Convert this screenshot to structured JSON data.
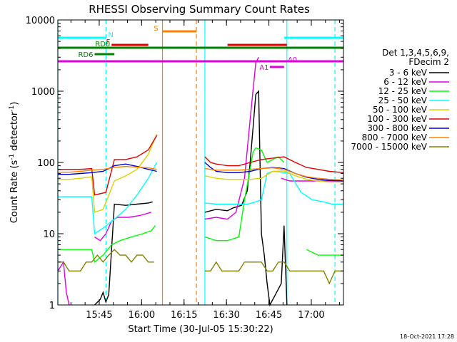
{
  "chart_data": {
    "type": "line",
    "title": "RHESSI Observing Summary Count Rates",
    "xlabel": "Start Time (30-Jul-05 15:30:22)",
    "ylabel_main": "Count Rate (s",
    "ylabel_sup1": "-1",
    "ylabel_mid": " detector",
    "ylabel_sup2": "-1",
    "ylabel_end": ")",
    "y_scale": "log",
    "ylim": [
      1,
      10000
    ],
    "xlim_minutes": [
      0,
      101
    ],
    "x_tick_labels": [
      "15:45",
      "16:00",
      "16:15",
      "16:30",
      "16:45",
      "17:00"
    ],
    "y_tick_labels": [
      "1",
      "10",
      "100",
      "1000",
      "10000"
    ],
    "grid": false,
    "legend_position": "right",
    "detector_info": [
      "Det 1,3,4,5,6,9,",
      "FDecim 2"
    ],
    "footer_date": "18-Oct-2021 17:28",
    "series": [
      {
        "name": "3 - 6 keV",
        "color": "#000000",
        "points": [
          [
            13,
            1
          ],
          [
            15,
            1.2
          ],
          [
            16,
            1.5
          ],
          [
            17,
            1.1
          ],
          [
            18,
            1.4
          ],
          [
            20,
            26
          ],
          [
            24,
            25
          ],
          [
            28,
            26
          ],
          [
            32,
            27
          ],
          [
            33.5,
            28
          ],
          [
            35,
            null
          ],
          [
            52,
            20
          ],
          [
            56,
            22
          ],
          [
            60,
            21
          ],
          [
            62,
            23
          ],
          [
            65,
            25
          ],
          [
            67,
            40
          ],
          [
            68,
            100
          ],
          [
            69,
            300
          ],
          [
            70,
            900
          ],
          [
            71,
            1000
          ],
          [
            72,
            10
          ],
          [
            73,
            5
          ],
          [
            74,
            2
          ],
          [
            75,
            1
          ],
          [
            79,
            2
          ],
          [
            80,
            13
          ],
          [
            81,
            1
          ]
        ]
      },
      {
        "name": "6 - 12 keV",
        "color": "#e000e0",
        "points": [
          [
            0,
            3
          ],
          [
            2,
            4
          ],
          [
            3,
            1.5
          ],
          [
            4,
            1
          ],
          [
            5,
            null
          ],
          [
            13,
            9
          ],
          [
            15,
            8
          ],
          [
            17,
            10
          ],
          [
            19,
            15
          ],
          [
            21,
            17
          ],
          [
            25,
            17
          ],
          [
            29,
            18
          ],
          [
            33,
            20
          ],
          [
            35,
            null
          ],
          [
            52,
            16
          ],
          [
            56,
            17
          ],
          [
            60,
            16
          ],
          [
            63,
            20
          ],
          [
            66,
            60
          ],
          [
            68,
            400
          ],
          [
            70,
            2500
          ],
          [
            71,
            3000
          ],
          [
            73,
            null
          ],
          [
            79,
            60
          ],
          [
            82,
            55
          ],
          [
            90,
            55
          ],
          [
            101,
            55
          ]
        ]
      },
      {
        "name": "12 - 25 keV",
        "color": "#00ff00",
        "points": [
          [
            0,
            6
          ],
          [
            4,
            6
          ],
          [
            8,
            6
          ],
          [
            12,
            6
          ],
          [
            13,
            4
          ],
          [
            16,
            5
          ],
          [
            19,
            7
          ],
          [
            22,
            8
          ],
          [
            26,
            9
          ],
          [
            30,
            10
          ],
          [
            33,
            11
          ],
          [
            34.5,
            13
          ],
          [
            35,
            null
          ],
          [
            52,
            9
          ],
          [
            56,
            8
          ],
          [
            60,
            8
          ],
          [
            64,
            9
          ],
          [
            66,
            30
          ],
          [
            68,
            80
          ],
          [
            69,
            140
          ],
          [
            70,
            160
          ],
          [
            72,
            150
          ],
          [
            74,
            100
          ],
          [
            76,
            110
          ],
          [
            78,
            120
          ],
          [
            80,
            100
          ],
          [
            81,
            null
          ],
          [
            88,
            6
          ],
          [
            92,
            5
          ],
          [
            97,
            5
          ],
          [
            101,
            5
          ]
        ]
      },
      {
        "name": "25 - 50 keV",
        "color": "#00ffff",
        "points": [
          [
            0,
            33
          ],
          [
            4,
            33
          ],
          [
            8,
            33
          ],
          [
            12,
            33
          ],
          [
            13,
            10
          ],
          [
            16,
            12
          ],
          [
            20,
            16
          ],
          [
            24,
            22
          ],
          [
            28,
            35
          ],
          [
            32,
            60
          ],
          [
            35,
            100
          ],
          [
            36,
            null
          ],
          [
            52,
            27
          ],
          [
            56,
            26
          ],
          [
            60,
            26
          ],
          [
            64,
            26
          ],
          [
            67,
            26
          ],
          [
            70,
            28
          ],
          [
            72,
            30
          ],
          [
            74,
            70
          ],
          [
            76,
            75
          ],
          [
            78,
            74
          ],
          [
            82,
            70
          ],
          [
            86,
            38
          ],
          [
            90,
            30
          ],
          [
            94,
            28
          ],
          [
            97,
            26
          ],
          [
            101,
            26
          ]
        ]
      },
      {
        "name": "50 - 100 keV",
        "color": "#e0d000",
        "points": [
          [
            0,
            58
          ],
          [
            4,
            58
          ],
          [
            8,
            60
          ],
          [
            12,
            63
          ],
          [
            13,
            20
          ],
          [
            16,
            22
          ],
          [
            20,
            55
          ],
          [
            24,
            65
          ],
          [
            28,
            80
          ],
          [
            32,
            130
          ],
          [
            35,
            250
          ],
          [
            36,
            null
          ],
          [
            52,
            65
          ],
          [
            56,
            60
          ],
          [
            60,
            58
          ],
          [
            64,
            58
          ],
          [
            68,
            58
          ],
          [
            72,
            60
          ],
          [
            76,
            75
          ],
          [
            80,
            76
          ],
          [
            84,
            65
          ],
          [
            88,
            58
          ],
          [
            92,
            55
          ],
          [
            96,
            53
          ],
          [
            101,
            53
          ]
        ]
      },
      {
        "name": "100 - 300 keV",
        "color": "#e00000",
        "points": [
          [
            0,
            80
          ],
          [
            4,
            80
          ],
          [
            8,
            80
          ],
          [
            12,
            82
          ],
          [
            13,
            35
          ],
          [
            17,
            38
          ],
          [
            20,
            110
          ],
          [
            24,
            110
          ],
          [
            28,
            120
          ],
          [
            32,
            150
          ],
          [
            35,
            240
          ],
          [
            36,
            null
          ],
          [
            52,
            120
          ],
          [
            54,
            100
          ],
          [
            56,
            95
          ],
          [
            60,
            90
          ],
          [
            64,
            90
          ],
          [
            68,
            100
          ],
          [
            72,
            110
          ],
          [
            76,
            115
          ],
          [
            80,
            120
          ],
          [
            84,
            100
          ],
          [
            88,
            85
          ],
          [
            92,
            80
          ],
          [
            96,
            75
          ],
          [
            101,
            72
          ]
        ]
      },
      {
        "name": "300 - 800 keV",
        "color": "#0000d0",
        "points": [
          [
            0,
            68
          ],
          [
            4,
            68
          ],
          [
            8,
            70
          ],
          [
            12,
            72
          ],
          [
            16,
            75
          ],
          [
            20,
            90
          ],
          [
            24,
            95
          ],
          [
            28,
            88
          ],
          [
            32,
            80
          ],
          [
            35,
            75
          ],
          [
            36,
            null
          ],
          [
            52,
            100
          ],
          [
            54,
            85
          ],
          [
            56,
            75
          ],
          [
            60,
            72
          ],
          [
            64,
            72
          ],
          [
            68,
            75
          ],
          [
            72,
            82
          ],
          [
            76,
            85
          ],
          [
            80,
            82
          ],
          [
            84,
            70
          ],
          [
            88,
            62
          ],
          [
            92,
            58
          ],
          [
            96,
            56
          ],
          [
            101,
            55
          ]
        ]
      },
      {
        "name": "800 - 7000 keV",
        "color": "#ff8000",
        "points": [
          [
            0,
            73
          ],
          [
            4,
            73
          ],
          [
            8,
            75
          ],
          [
            12,
            78
          ],
          [
            16,
            80
          ],
          [
            20,
            85
          ],
          [
            24,
            88
          ],
          [
            28,
            86
          ],
          [
            32,
            84
          ],
          [
            35,
            80
          ],
          [
            36,
            null
          ],
          [
            52,
            82
          ],
          [
            54,
            80
          ],
          [
            56,
            78
          ],
          [
            60,
            78
          ],
          [
            64,
            78
          ],
          [
            68,
            80
          ],
          [
            72,
            82
          ],
          [
            76,
            84
          ],
          [
            80,
            80
          ],
          [
            84,
            70
          ],
          [
            88,
            63
          ],
          [
            92,
            60
          ],
          [
            96,
            58
          ],
          [
            101,
            57
          ]
        ]
      },
      {
        "name": "7000 - 15000 keV",
        "color": "#808000",
        "points": [
          [
            0,
            4
          ],
          [
            2,
            4
          ],
          [
            4,
            3
          ],
          [
            6,
            3
          ],
          [
            8,
            3
          ],
          [
            10,
            4
          ],
          [
            12,
            4
          ],
          [
            14,
            5
          ],
          [
            16,
            4
          ],
          [
            18,
            5
          ],
          [
            20,
            6
          ],
          [
            22,
            5
          ],
          [
            24,
            5
          ],
          [
            26,
            4
          ],
          [
            28,
            5
          ],
          [
            30,
            5
          ],
          [
            32,
            4
          ],
          [
            34,
            4
          ],
          [
            35,
            null
          ],
          [
            52,
            3
          ],
          [
            54,
            3
          ],
          [
            56,
            4
          ],
          [
            58,
            3
          ],
          [
            60,
            3
          ],
          [
            62,
            3
          ],
          [
            64,
            3
          ],
          [
            66,
            4
          ],
          [
            68,
            4
          ],
          [
            70,
            4
          ],
          [
            72,
            4
          ],
          [
            74,
            3
          ],
          [
            76,
            3
          ],
          [
            78,
            4
          ],
          [
            80,
            4
          ],
          [
            82,
            3
          ],
          [
            84,
            3
          ],
          [
            86,
            3
          ],
          [
            88,
            3
          ],
          [
            90,
            3
          ],
          [
            92,
            3
          ],
          [
            94,
            3
          ],
          [
            96,
            2
          ],
          [
            98,
            3
          ],
          [
            101,
            3
          ]
        ]
      }
    ],
    "flag_bars": [
      {
        "label": "N",
        "color": "#00ffff",
        "log_y": 3.75,
        "segments": [
          [
            0,
            17
          ],
          [
            80,
            101
          ]
        ]
      },
      {
        "label": "F",
        "color": "#e00000",
        "log_y": 3.65,
        "segments": [
          [
            19,
            32
          ],
          [
            60,
            81
          ]
        ]
      },
      {
        "label": "S",
        "color": "#ff8000",
        "log_y": 3.84,
        "segments": [
          [
            37,
            49
          ]
        ]
      },
      {
        "label": "RD0",
        "color": "#008000",
        "log_y": 3.61,
        "segments": [
          [
            0,
            101
          ]
        ]
      },
      {
        "label": "RD6",
        "color": "#008000",
        "log_y": 3.52,
        "segments": [
          [
            13,
            20
          ]
        ]
      },
      {
        "label": "A0",
        "color": "#e000e0",
        "log_y": 3.42,
        "segments": [
          [
            0,
            101
          ]
        ]
      },
      {
        "label": "A1",
        "color": "#e000e0",
        "log_y": 3.34,
        "segments": [
          [
            75,
            80
          ]
        ]
      }
    ],
    "vertical_lines": [
      {
        "x": 0,
        "color": "#00ffff",
        "style": "solid"
      },
      {
        "x": 17,
        "color": "#00ffff",
        "style": "dashed"
      },
      {
        "x": 37,
        "color": "#ff8000",
        "style": "solid"
      },
      {
        "x": 49,
        "color": "#ff8000",
        "style": "dashed"
      },
      {
        "x": 52,
        "color": "#00ffff",
        "style": "solid"
      },
      {
        "x": 81,
        "color": "#00ffff",
        "style": "solid"
      },
      {
        "x": 98,
        "color": "#00ffff",
        "style": "dashed"
      }
    ]
  }
}
